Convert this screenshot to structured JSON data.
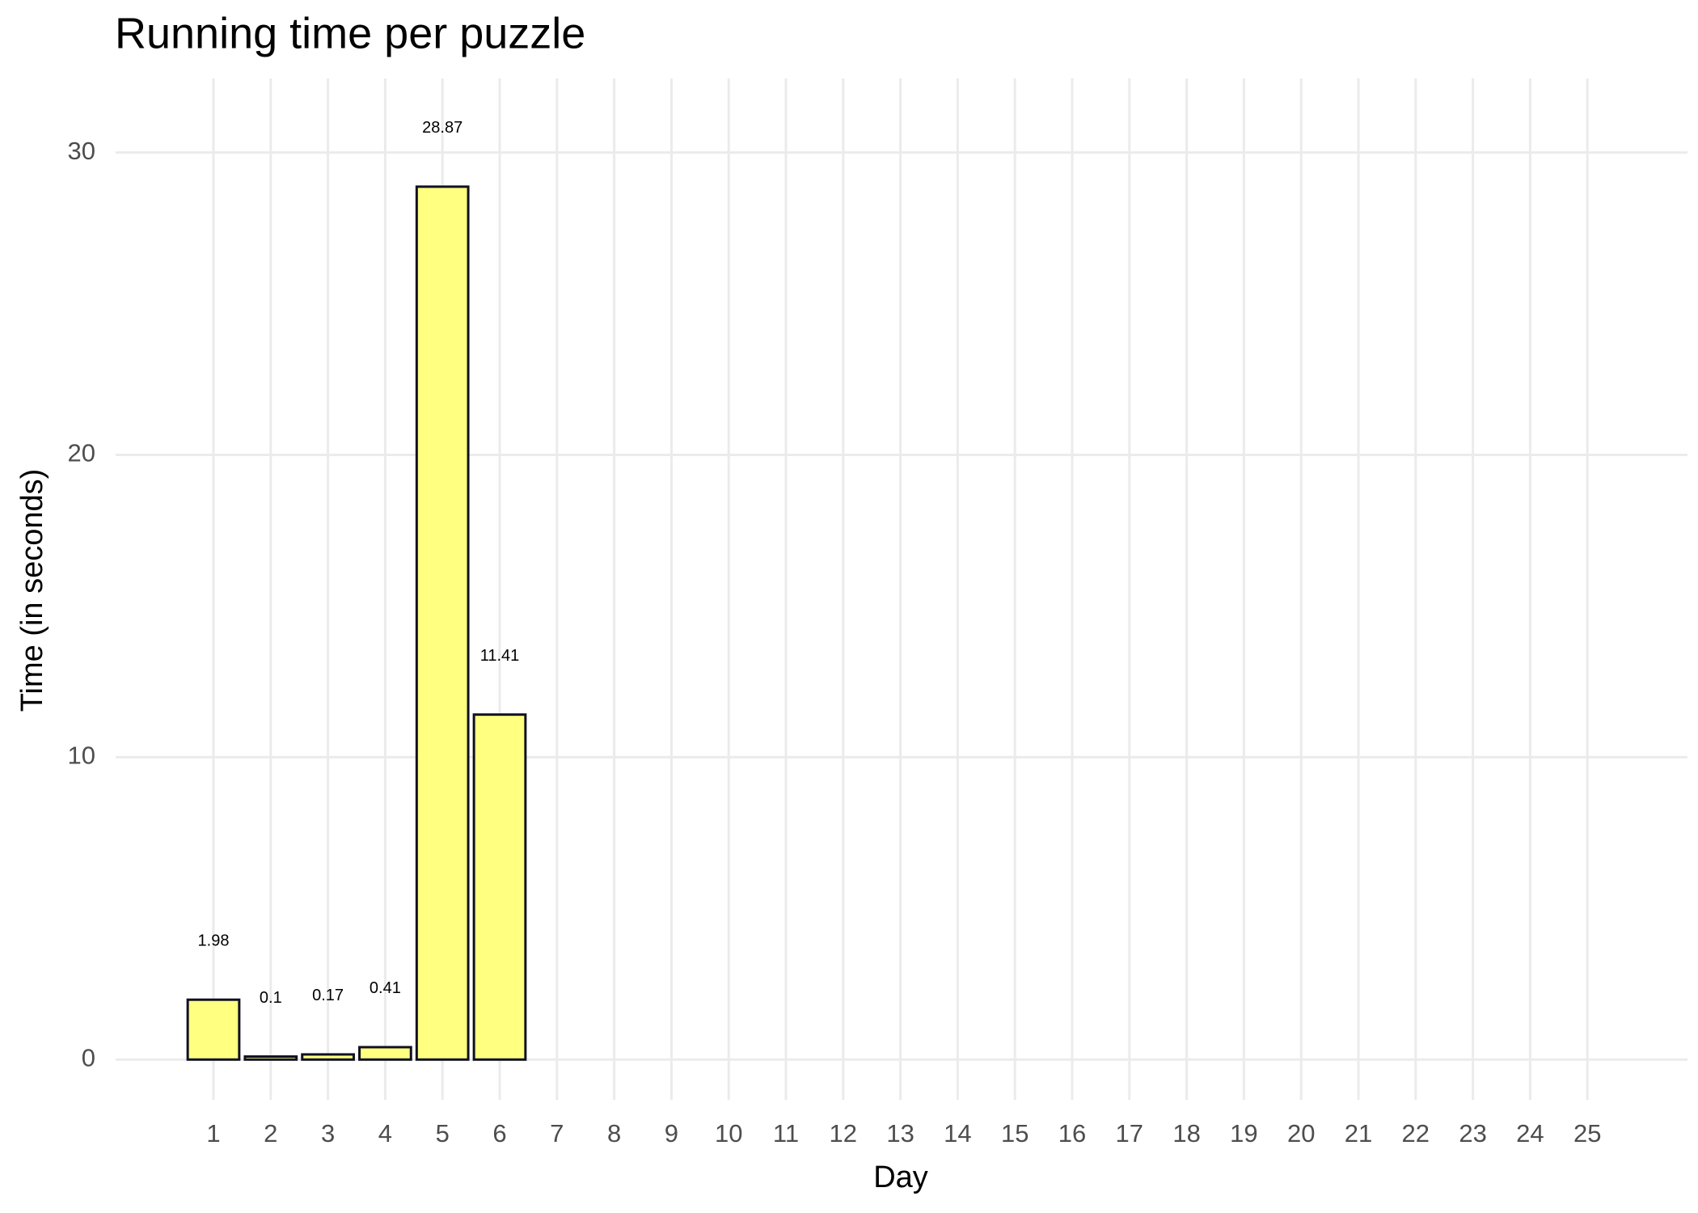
{
  "chart_data": {
    "type": "bar",
    "title": "Running time per puzzle",
    "x_label": "Day",
    "y_label": "Time (in seconds)",
    "categories": [
      "1",
      "2",
      "3",
      "4",
      "5",
      "6",
      "7",
      "8",
      "9",
      "10",
      "11",
      "12",
      "13",
      "14",
      "15",
      "16",
      "17",
      "18",
      "19",
      "20",
      "21",
      "22",
      "23",
      "24",
      "25"
    ],
    "values": [
      1.98,
      0.1,
      0.17,
      0.41,
      28.87,
      11.41,
      null,
      null,
      null,
      null,
      null,
      null,
      null,
      null,
      null,
      null,
      null,
      null,
      null,
      null,
      null,
      null,
      null,
      null,
      null
    ],
    "color": "#ffff80",
    "edge_color": "#111122",
    "ylim": [
      -1.33,
      32.45
    ],
    "yticks": [
      0,
      10,
      20,
      30
    ],
    "grid": true
  }
}
